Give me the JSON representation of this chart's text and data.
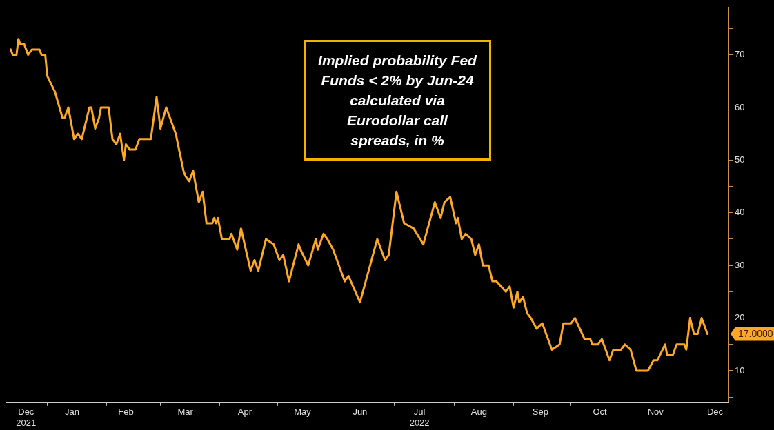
{
  "chart_data": {
    "type": "line",
    "title": "Implied probability Fed Funds < 2% by Jun-24 calculated via Eurodollar call spreads, in %",
    "x": [
      "2021-12-13",
      "2021-12-14",
      "2021-12-16",
      "2021-12-17",
      "2021-12-18",
      "2021-12-20",
      "2021-12-22",
      "2021-12-24",
      "2021-12-28",
      "2021-12-29",
      "2021-12-31",
      "2022-01-01",
      "2022-01-05",
      "2022-01-09",
      "2022-01-10",
      "2022-01-12",
      "2022-01-15",
      "2022-01-17",
      "2022-01-19",
      "2022-01-23",
      "2022-01-24",
      "2022-01-26",
      "2022-01-28",
      "2022-01-29",
      "2022-02-02",
      "2022-02-04",
      "2022-02-06",
      "2022-02-08",
      "2022-02-10",
      "2022-02-11",
      "2022-02-13",
      "2022-02-16",
      "2022-02-18",
      "2022-02-24",
      "2022-02-27",
      "2022-03-01",
      "2022-03-04",
      "2022-03-09",
      "2022-03-13",
      "2022-03-14",
      "2022-03-16",
      "2022-03-18",
      "2022-03-21",
      "2022-03-23",
      "2022-03-25",
      "2022-03-28",
      "2022-03-29",
      "2022-03-30",
      "2022-03-31",
      "2022-04-02",
      "2022-04-06",
      "2022-04-07",
      "2022-04-10",
      "2022-04-12",
      "2022-04-17",
      "2022-04-19",
      "2022-04-21",
      "2022-04-25",
      "2022-04-29",
      "2022-05-02",
      "2022-05-04",
      "2022-05-07",
      "2022-05-12",
      "2022-05-13",
      "2022-05-17",
      "2022-05-21",
      "2022-05-22",
      "2022-05-25",
      "2022-05-27",
      "2022-05-30",
      "2022-06-05",
      "2022-06-07",
      "2022-06-13",
      "2022-06-22",
      "2022-06-26",
      "2022-06-28",
      "2022-07-02",
      "2022-07-06",
      "2022-07-11",
      "2022-07-16",
      "2022-07-22",
      "2022-07-25",
      "2022-07-27",
      "2022-07-30",
      "2022-08-02",
      "2022-08-03",
      "2022-08-05",
      "2022-08-07",
      "2022-08-10",
      "2022-08-12",
      "2022-08-14",
      "2022-08-16",
      "2022-08-19",
      "2022-08-21",
      "2022-08-23",
      "2022-08-28",
      "2022-08-30",
      "2022-09-01",
      "2022-09-03",
      "2022-09-04",
      "2022-09-06",
      "2022-09-08",
      "2022-09-10",
      "2022-09-13",
      "2022-09-16",
      "2022-09-21",
      "2022-09-25",
      "2022-09-27",
      "2022-10-01",
      "2022-10-03",
      "2022-10-08",
      "2022-10-11",
      "2022-10-12",
      "2022-10-15",
      "2022-10-17",
      "2022-10-21",
      "2022-10-23",
      "2022-10-27",
      "2022-10-29",
      "2022-11-01",
      "2022-11-04",
      "2022-11-10",
      "2022-11-13",
      "2022-11-15",
      "2022-11-19",
      "2022-11-20",
      "2022-11-23",
      "2022-11-25",
      "2022-11-29",
      "2022-11-30",
      "2022-12-02",
      "2022-12-04",
      "2022-12-06",
      "2022-12-08",
      "2022-12-11"
    ],
    "series": [
      {
        "color": "#ffa726",
        "values": [
          71,
          70,
          70,
          73,
          72,
          72,
          70,
          71,
          71,
          70,
          70,
          66,
          63,
          58,
          58,
          60,
          54,
          55,
          54,
          60,
          60,
          56,
          58,
          60,
          60,
          54,
          53,
          55,
          50,
          53,
          52,
          52,
          54,
          54,
          62,
          56,
          60,
          55,
          48,
          47,
          46,
          48,
          42,
          44,
          38,
          38,
          39,
          38,
          39,
          35,
          35,
          36,
          33,
          37,
          29,
          31,
          29,
          35,
          34,
          31,
          32,
          27,
          34,
          33,
          30,
          35,
          33,
          36,
          35,
          33,
          27,
          28,
          23,
          35,
          31,
          32,
          44,
          38,
          37,
          34,
          42,
          39,
          42,
          43,
          38,
          39,
          35,
          36,
          35,
          32,
          34,
          30,
          30,
          27,
          27,
          25,
          26,
          22,
          25,
          23,
          24,
          21,
          20,
          18,
          19,
          14,
          15,
          19,
          19,
          20,
          16,
          16,
          15,
          15,
          16,
          12,
          14,
          14,
          15,
          14,
          10,
          10,
          12,
          12,
          15,
          13,
          13,
          15,
          15,
          14,
          20,
          17,
          17,
          20,
          17
        ]
      }
    ],
    "xlim": [
      "2021-12-11",
      "2022-12-22"
    ],
    "xticks": [
      {
        "value": "2021-12-21",
        "label": "Dec\n2021"
      },
      {
        "value": "2022-01-01",
        "label": null
      },
      {
        "value": "2022-01-14",
        "label": "Jan"
      },
      {
        "value": "2022-02-01",
        "label": null
      },
      {
        "value": "2022-02-11",
        "label": "Feb"
      },
      {
        "value": "2022-03-01",
        "label": null
      },
      {
        "value": "2022-03-14",
        "label": "Mar"
      },
      {
        "value": "2022-04-01",
        "label": null
      },
      {
        "value": "2022-04-14",
        "label": "Apr"
      },
      {
        "value": "2022-05-01",
        "label": null
      },
      {
        "value": "2022-05-14",
        "label": "May"
      },
      {
        "value": "2022-06-01",
        "label": null
      },
      {
        "value": "2022-06-13",
        "label": "Jun"
      },
      {
        "value": "2022-07-01",
        "label": null
      },
      {
        "value": "2022-07-14",
        "label": "Jul\n2022"
      },
      {
        "value": "2022-08-01",
        "label": null
      },
      {
        "value": "2022-08-14",
        "label": "Aug"
      },
      {
        "value": "2022-09-01",
        "label": null
      },
      {
        "value": "2022-09-15",
        "label": "Sep"
      },
      {
        "value": "2022-10-01",
        "label": null
      },
      {
        "value": "2022-10-16",
        "label": "Oct"
      },
      {
        "value": "2022-11-01",
        "label": null
      },
      {
        "value": "2022-11-14",
        "label": "Nov"
      },
      {
        "value": "2022-12-01",
        "label": null
      },
      {
        "value": "2022-12-15",
        "label": "Dec"
      }
    ],
    "ylim": [
      4,
      79
    ],
    "yticks": [
      {
        "value": 5,
        "label": null
      },
      10,
      {
        "value": 15,
        "label": null
      },
      20,
      {
        "value": 25,
        "label": null
      },
      30,
      {
        "value": 35,
        "label": null
      },
      40,
      {
        "value": 45,
        "label": null
      },
      50,
      {
        "value": 55,
        "label": null
      },
      60,
      {
        "value": 65,
        "label": null
      },
      70,
      {
        "value": 75,
        "label": null
      }
    ],
    "annotations": [
      "17.0000"
    ],
    "grid": false,
    "legend": false,
    "marker": "none",
    "line_style": "solid"
  }
}
